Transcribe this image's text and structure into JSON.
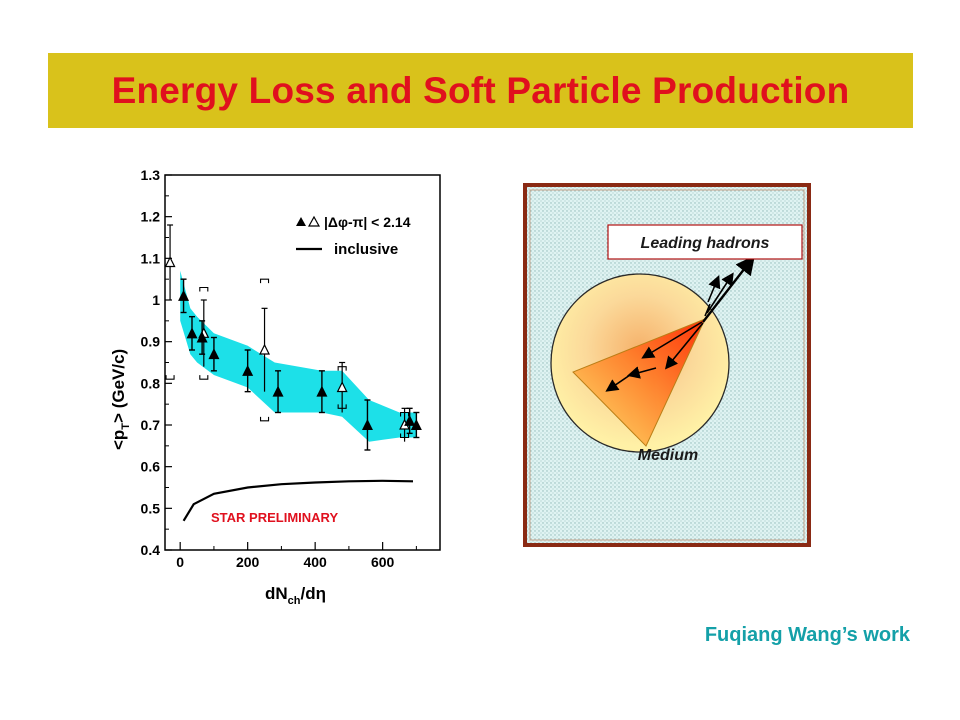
{
  "title": "Energy Loss and Soft Particle Production",
  "credit": "Fuqiang Wang’s work",
  "diagram": {
    "leading_label": "Leading hadrons",
    "medium_label": "Medium"
  },
  "colors": {
    "title_bg": "#d9c21b",
    "title_text": "#e0101e",
    "band": "#1de0e8",
    "credit": "#14a0a8",
    "preliminary": "#e0101e"
  },
  "chart_data": {
    "type": "scatter",
    "xlabel_main": "dN",
    "xlabel_sub": "ch",
    "xlabel_tail": "/dη",
    "ylabel_main": "<p",
    "ylabel_sub": "T",
    "ylabel_tail": ">   (GeV/c)",
    "xlim": [
      -45,
      770
    ],
    "ylim": [
      0.4,
      1.3
    ],
    "xticks": [
      0,
      200,
      400,
      600
    ],
    "yticks": [
      0.4,
      0.5,
      0.6,
      0.7,
      0.8,
      0.9,
      1,
      1.1,
      1.2,
      1.3
    ],
    "legend": {
      "position": "top-right",
      "cut_label": "|Δφ-π| < 2.14",
      "inclusive_label": "inclusive"
    },
    "annotation": "STAR PRELIMINARY",
    "band": {
      "x": [
        0,
        30,
        50,
        100,
        200,
        280,
        420,
        480,
        560,
        650,
        680,
        700
      ],
      "upper": [
        1.07,
        0.98,
        0.96,
        0.92,
        0.89,
        0.85,
        0.83,
        0.83,
        0.76,
        0.73,
        0.73,
        0.73
      ],
      "lower": [
        0.95,
        0.87,
        0.85,
        0.82,
        0.79,
        0.73,
        0.73,
        0.72,
        0.66,
        0.67,
        0.67,
        0.67
      ]
    },
    "series": [
      {
        "name": "filled",
        "marker": "filled-triangle",
        "x": [
          10,
          35,
          65,
          100,
          200,
          290,
          420,
          555,
          680,
          700
        ],
        "y": [
          1.01,
          0.92,
          0.91,
          0.87,
          0.83,
          0.78,
          0.78,
          0.7,
          0.71,
          0.7
        ],
        "yerr": [
          0.04,
          0.04,
          0.04,
          0.04,
          0.05,
          0.05,
          0.05,
          0.06,
          0.03,
          0.03
        ]
      },
      {
        "name": "open",
        "marker": "open-triangle",
        "x": [
          -30,
          70,
          250,
          480,
          665
        ],
        "y": [
          1.09,
          0.92,
          0.88,
          0.79,
          0.7
        ],
        "yerr": [
          0.09,
          0.08,
          0.1,
          0.06,
          0.04
        ],
        "sys": [
          0.28,
          0.11,
          0.17,
          0.05,
          0.03
        ]
      },
      {
        "name": "inclusive",
        "marker": "line",
        "x": [
          10,
          40,
          100,
          200,
          300,
          400,
          500,
          600,
          690
        ],
        "y": [
          0.47,
          0.51,
          0.535,
          0.55,
          0.558,
          0.562,
          0.565,
          0.566,
          0.565
        ]
      }
    ]
  }
}
